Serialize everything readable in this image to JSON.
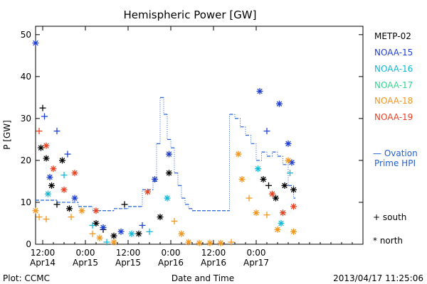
{
  "chart_data": {
    "type": "scatter",
    "title": "Hemispheric Power [GW]",
    "xlabel": "Date and Time",
    "ylabel": "P [GW]",
    "xlim": [
      "2013-04-14T10:00",
      "2013-04-18T06:00"
    ],
    "ylim": [
      0,
      52
    ],
    "yticks": [
      0,
      10,
      20,
      30,
      40,
      50
    ],
    "xticks": [
      {
        "t": "2013-04-14T12:00",
        "time": "12:00",
        "date": "Apr14"
      },
      {
        "t": "2013-04-15T00:00",
        "time": "0:00",
        "date": "Apr15"
      },
      {
        "t": "2013-04-15T12:00",
        "time": "12:00",
        "date": "Apr15"
      },
      {
        "t": "2013-04-16T00:00",
        "time": "0:00",
        "date": "Apr16"
      },
      {
        "t": "2013-04-16T12:00",
        "time": "12:00",
        "date": "Apr16"
      },
      {
        "t": "2013-04-17T00:00",
        "time": "0:00",
        "date": "Apr17"
      }
    ],
    "grid": false,
    "legend_position": "right",
    "footer_left": "Plot: CCMC",
    "footer_right": "2013/04/17 11:25:06",
    "legend": {
      "satellites": [
        "METP-02",
        "NOAA-15",
        "NOAA-16",
        "NOAA-17",
        "NOAA-18",
        "NOAA-19"
      ],
      "ovation_label_1": "— Ovation",
      "ovation_label_2": "Prime HPI",
      "south_label": "+ south",
      "north_label": "* north"
    },
    "series": [
      {
        "name": "METP-02",
        "color": "#000000",
        "points": [
          {
            "t": "2013-04-14T11:30",
            "y": 23,
            "m": "*"
          },
          {
            "t": "2013-04-14T12:00",
            "y": 32.5,
            "m": "+"
          },
          {
            "t": "2013-04-14T13:00",
            "y": 20.5,
            "m": "*"
          },
          {
            "t": "2013-04-14T14:30",
            "y": 14,
            "m": "*"
          },
          {
            "t": "2013-04-14T16:00",
            "y": 9.5,
            "m": "+"
          },
          {
            "t": "2013-04-14T17:30",
            "y": 20,
            "m": "*"
          },
          {
            "t": "2013-04-14T19:30",
            "y": 8.5,
            "m": "*"
          },
          {
            "t": "2013-04-15T03:00",
            "y": 5,
            "m": "*"
          },
          {
            "t": "2013-04-15T05:00",
            "y": 3.5,
            "m": "+"
          },
          {
            "t": "2013-04-15T08:00",
            "y": 2,
            "m": "*"
          },
          {
            "t": "2013-04-15T11:00",
            "y": 9.5,
            "m": "+"
          },
          {
            "t": "2013-04-15T15:00",
            "y": 2.5,
            "m": "*"
          },
          {
            "t": "2013-04-15T21:00",
            "y": 6.5,
            "m": "*"
          },
          {
            "t": "2013-04-15T23:30",
            "y": 17,
            "m": "*"
          },
          {
            "t": "2013-04-17T02:00",
            "y": 15.5,
            "m": "*"
          },
          {
            "t": "2013-04-17T03:30",
            "y": 14,
            "m": "+"
          },
          {
            "t": "2013-04-17T05:30",
            "y": 11,
            "m": "*"
          },
          {
            "t": "2013-04-17T08:00",
            "y": 14,
            "m": "*"
          },
          {
            "t": "2013-04-17T10:30",
            "y": 13,
            "m": "*"
          }
        ]
      },
      {
        "name": "NOAA-15",
        "color": "#1f3fd0",
        "points": [
          {
            "t": "2013-04-14T10:00",
            "y": 48,
            "m": "*"
          },
          {
            "t": "2013-04-14T12:30",
            "y": 30.5,
            "m": "+"
          },
          {
            "t": "2013-04-14T14:00",
            "y": 16,
            "m": "*"
          },
          {
            "t": "2013-04-14T16:00",
            "y": 27,
            "m": "+"
          },
          {
            "t": "2013-04-14T19:00",
            "y": 21.5,
            "m": "+"
          },
          {
            "t": "2013-04-14T21:00",
            "y": 11,
            "m": "*"
          },
          {
            "t": "2013-04-15T05:00",
            "y": 4,
            "m": "*"
          },
          {
            "t": "2013-04-15T10:00",
            "y": 3,
            "m": "*"
          },
          {
            "t": "2013-04-15T16:00",
            "y": 4.5,
            "m": "+"
          },
          {
            "t": "2013-04-15T19:30",
            "y": 15.5,
            "m": "*"
          },
          {
            "t": "2013-04-15T23:30",
            "y": 21.5,
            "m": "*"
          },
          {
            "t": "2013-04-17T01:00",
            "y": 36.5,
            "m": "*"
          },
          {
            "t": "2013-04-17T03:00",
            "y": 27,
            "m": "+"
          },
          {
            "t": "2013-04-17T06:30",
            "y": 33.5,
            "m": "*"
          },
          {
            "t": "2013-04-17T09:00",
            "y": 24,
            "m": "*"
          },
          {
            "t": "2013-04-17T10:00",
            "y": 19.5,
            "m": "*"
          }
        ]
      },
      {
        "name": "NOAA-16",
        "color": "#10b8d8",
        "points": [
          {
            "t": "2013-04-14T13:30",
            "y": 12,
            "m": "*"
          },
          {
            "t": "2013-04-14T18:00",
            "y": 16.5,
            "m": "+"
          },
          {
            "t": "2013-04-15T02:00",
            "y": 4.5,
            "m": "+"
          },
          {
            "t": "2013-04-15T06:00",
            "y": 0.5,
            "m": "+"
          },
          {
            "t": "2013-04-15T13:00",
            "y": 2.5,
            "m": "*"
          },
          {
            "t": "2013-04-15T18:00",
            "y": 3,
            "m": "+"
          },
          {
            "t": "2013-04-15T23:00",
            "y": 11,
            "m": "*"
          },
          {
            "t": "2013-04-17T00:30",
            "y": 18,
            "m": "*"
          },
          {
            "t": "2013-04-17T07:00",
            "y": 5,
            "m": "*"
          },
          {
            "t": "2013-04-17T09:30",
            "y": 17,
            "m": "+"
          }
        ]
      },
      {
        "name": "NOAA-18",
        "color": "#f0961e",
        "points": [
          {
            "t": "2013-04-14T10:00",
            "y": 8,
            "m": "*"
          },
          {
            "t": "2013-04-14T11:00",
            "y": 6.5,
            "m": "+"
          },
          {
            "t": "2013-04-14T13:00",
            "y": 6,
            "m": "+"
          },
          {
            "t": "2013-04-14T20:00",
            "y": 6.5,
            "m": "+"
          },
          {
            "t": "2013-04-14T23:00",
            "y": 8,
            "m": "*"
          },
          {
            "t": "2013-04-15T02:00",
            "y": 2.5,
            "m": "+"
          },
          {
            "t": "2013-04-15T04:00",
            "y": 1.5,
            "m": "*"
          },
          {
            "t": "2013-04-15T08:00",
            "y": 0.5,
            "m": "*"
          },
          {
            "t": "2013-04-16T01:00",
            "y": 5.5,
            "m": "+"
          },
          {
            "t": "2013-04-16T03:00",
            "y": 2.5,
            "m": "*"
          },
          {
            "t": "2013-04-16T05:00",
            "y": 0.5,
            "m": "*"
          },
          {
            "t": "2013-04-16T08:00",
            "y": 0.3,
            "m": "*"
          },
          {
            "t": "2013-04-16T11:00",
            "y": 0.3,
            "m": "*"
          },
          {
            "t": "2013-04-16T14:00",
            "y": 0.3,
            "m": "*"
          },
          {
            "t": "2013-04-16T17:00",
            "y": 0.5,
            "m": "+"
          },
          {
            "t": "2013-04-16T19:00",
            "y": 21.5,
            "m": "*"
          },
          {
            "t": "2013-04-16T20:00",
            "y": 15.5,
            "m": "*"
          },
          {
            "t": "2013-04-16T22:00",
            "y": 11,
            "m": "+"
          },
          {
            "t": "2013-04-17T00:00",
            "y": 7.5,
            "m": "*"
          },
          {
            "t": "2013-04-17T03:00",
            "y": 7,
            "m": "+"
          },
          {
            "t": "2013-04-17T06:00",
            "y": 3.5,
            "m": "*"
          },
          {
            "t": "2013-04-17T09:00",
            "y": 20,
            "m": "*"
          },
          {
            "t": "2013-04-17T10:30",
            "y": 3,
            "m": "*"
          }
        ]
      },
      {
        "name": "NOAA-19",
        "color": "#e84020",
        "points": [
          {
            "t": "2013-04-14T11:00",
            "y": 27,
            "m": "+"
          },
          {
            "t": "2013-04-14T13:00",
            "y": 23.5,
            "m": "*"
          },
          {
            "t": "2013-04-14T15:00",
            "y": 18,
            "m": "*"
          },
          {
            "t": "2013-04-14T18:00",
            "y": 13,
            "m": "*"
          },
          {
            "t": "2013-04-14T21:00",
            "y": 17,
            "m": "*"
          },
          {
            "t": "2013-04-15T03:00",
            "y": 8,
            "m": "*"
          },
          {
            "t": "2013-04-15T17:30",
            "y": 12.5,
            "m": "*"
          },
          {
            "t": "2013-04-17T04:30",
            "y": 12,
            "m": "*"
          },
          {
            "t": "2013-04-17T07:30",
            "y": 7.5,
            "m": "*"
          },
          {
            "t": "2013-04-17T10:30",
            "y": 9,
            "m": "*"
          }
        ]
      }
    ],
    "ovation": {
      "name": "Ovation Prime HPI",
      "color": "#2060d0",
      "steps": [
        {
          "t": "2013-04-14T10:00",
          "y": 10.5
        },
        {
          "t": "2013-04-14T16:00",
          "y": 10
        },
        {
          "t": "2013-04-14T22:00",
          "y": 9
        },
        {
          "t": "2013-04-15T02:00",
          "y": 8
        },
        {
          "t": "2013-04-15T08:00",
          "y": 8.5
        },
        {
          "t": "2013-04-15T12:00",
          "y": 9
        },
        {
          "t": "2013-04-15T16:00",
          "y": 13
        },
        {
          "t": "2013-04-15T19:00",
          "y": 15
        },
        {
          "t": "2013-04-15T20:00",
          "y": 24
        },
        {
          "t": "2013-04-15T21:00",
          "y": 35
        },
        {
          "t": "2013-04-15T22:00",
          "y": 31
        },
        {
          "t": "2013-04-15T23:00",
          "y": 25
        },
        {
          "t": "2013-04-16T00:00",
          "y": 23
        },
        {
          "t": "2013-04-16T01:00",
          "y": 17
        },
        {
          "t": "2013-04-16T02:00",
          "y": 14
        },
        {
          "t": "2013-04-16T03:00",
          "y": 11
        },
        {
          "t": "2013-04-16T04:00",
          "y": 9.5
        },
        {
          "t": "2013-04-16T05:00",
          "y": 8.5
        },
        {
          "t": "2013-04-16T06:00",
          "y": 8
        },
        {
          "t": "2013-04-16T16:30",
          "y": 31
        },
        {
          "t": "2013-04-16T18:00",
          "y": 30
        },
        {
          "t": "2013-04-16T19:30",
          "y": 28
        },
        {
          "t": "2013-04-16T21:00",
          "y": 26
        },
        {
          "t": "2013-04-16T22:30",
          "y": 24
        },
        {
          "t": "2013-04-17T00:00",
          "y": 20
        },
        {
          "t": "2013-04-17T01:30",
          "y": 22
        },
        {
          "t": "2013-04-17T03:00",
          "y": 21
        },
        {
          "t": "2013-04-17T04:30",
          "y": 22
        },
        {
          "t": "2013-04-17T06:00",
          "y": 21
        },
        {
          "t": "2013-04-17T07:30",
          "y": 19
        },
        {
          "t": "2013-04-17T09:00",
          "y": 14
        },
        {
          "t": "2013-04-17T10:30",
          "y": 11
        }
      ],
      "end": "2013-04-17T11:00"
    }
  }
}
